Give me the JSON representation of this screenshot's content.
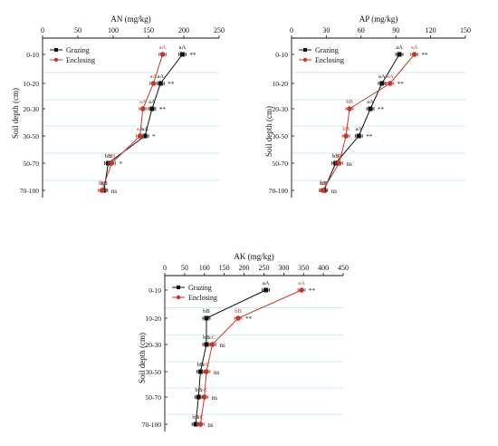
{
  "figure": {
    "ylabel": "Soil depth (cm)",
    "legend": {
      "grazing_label": "Grazing",
      "enclosing_label": "Enclosing"
    },
    "colors": {
      "grazing": "#111111",
      "enclosing": "#c0392b",
      "gridline": "#bfe3f0",
      "text": "#111111"
    }
  },
  "chart_data": [
    {
      "type": "line",
      "title": "AN (mg/kg)",
      "xlabel": "",
      "ylabel": "Soil depth (cm)",
      "xlim": [
        0,
        250
      ],
      "xticks": [
        "0",
        "50",
        "100",
        "150",
        "200",
        "250"
      ],
      "xtick_values": [
        0,
        50,
        100,
        150,
        200,
        250
      ],
      "categories": [
        "0-10",
        "10-20",
        "20-30",
        "30-50",
        "50-70",
        "70-100"
      ],
      "legend_position": "top-left",
      "series": [
        {
          "name": "Grazing",
          "values": [
            198,
            167,
            155,
            145,
            93,
            87
          ],
          "letters": [
            "aA",
            "aA",
            "aA",
            "aA",
            "bB",
            "bB"
          ]
        },
        {
          "name": "Enclosing",
          "values": [
            170,
            157,
            142,
            138,
            98,
            84
          ],
          "letters": [
            "aA",
            "aA",
            "aA",
            "aA",
            "bB",
            "bB"
          ]
        }
      ],
      "significance": [
        "**",
        "**",
        "**",
        "*",
        "*",
        "ns"
      ]
    },
    {
      "type": "line",
      "title": "AP (mg/kg)",
      "xlabel": "",
      "ylabel": "Soil depth (cm)",
      "xlim": [
        0,
        150
      ],
      "xticks": [
        "0",
        "30",
        "60",
        "90",
        "120",
        "150"
      ],
      "xtick_values": [
        0,
        30,
        60,
        90,
        120,
        150
      ],
      "categories": [
        "0-10",
        "10-20",
        "20-30",
        "30-50",
        "50-70",
        "70-100"
      ],
      "legend_position": "top-left",
      "series": [
        {
          "name": "Grazing",
          "values": [
            93,
            78,
            68,
            58,
            38,
            28
          ],
          "letters": [
            "aA",
            "aA",
            "aA",
            "aA",
            "bB",
            "bB"
          ]
        },
        {
          "name": "Enclosing",
          "values": [
            106,
            85,
            50,
            47,
            41,
            27
          ],
          "letters": [
            "aA",
            "aA",
            "bB",
            "bB",
            "bB",
            "bB"
          ]
        }
      ],
      "significance": [
        "**",
        "**",
        "**",
        "**",
        "ns",
        "ns"
      ]
    },
    {
      "type": "line",
      "title": "AK (mg/kg)",
      "xlabel": "",
      "ylabel": "Soil depth (cm)",
      "xlim": [
        0,
        450
      ],
      "xticks": [
        "0",
        "50",
        "100",
        "150",
        "200",
        "250",
        "300",
        "350",
        "400",
        "450"
      ],
      "xtick_values": [
        0,
        50,
        100,
        150,
        200,
        250,
        300,
        350,
        400,
        450
      ],
      "categories": [
        "0-10",
        "10-20",
        "20-30",
        "30-50",
        "50-70",
        "70-100"
      ],
      "legend_position": "top-left",
      "series": [
        {
          "name": "Grazing",
          "values": [
            255,
            105,
            105,
            90,
            85,
            78
          ],
          "letters": [
            "aA",
            "bB",
            "bB",
            "bB",
            "bB",
            "bB"
          ]
        },
        {
          "name": "Enclosing",
          "values": [
            345,
            185,
            120,
            105,
            100,
            90
          ],
          "letters": [
            "aA",
            "bB",
            "cC",
            "cC",
            "cC",
            "cC"
          ]
        }
      ],
      "significance": [
        "**",
        "**",
        "ns",
        "ns",
        "ns",
        "ns"
      ]
    }
  ]
}
